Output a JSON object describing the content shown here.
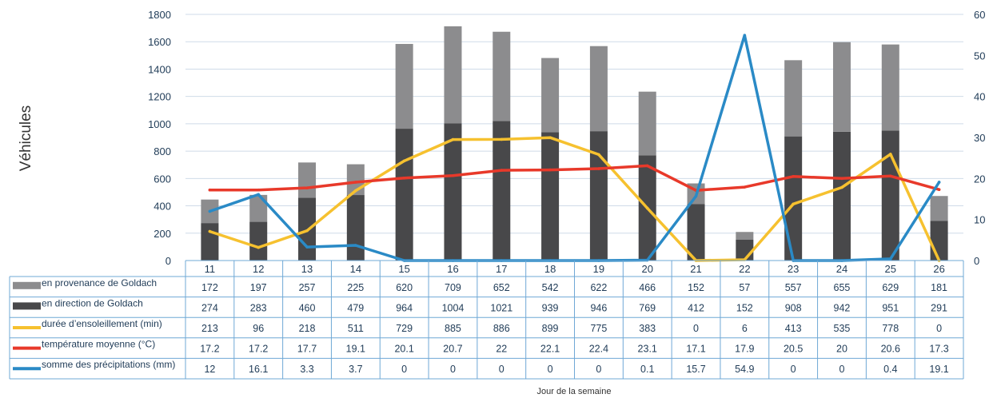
{
  "chart_data": {
    "type": "bar",
    "ylabel": "Véhicules",
    "xlabel": "Jour de la semaine",
    "categories": [
      "11",
      "12",
      "13",
      "14",
      "15",
      "16",
      "17",
      "18",
      "19",
      "20",
      "21",
      "22",
      "23",
      "24",
      "25",
      "26"
    ],
    "ylim": [
      0,
      1800
    ],
    "y2lim": [
      0,
      60
    ],
    "yticks": [
      "0",
      "200",
      "400",
      "600",
      "800",
      "1000",
      "1200",
      "1400",
      "1600",
      "1800"
    ],
    "y2ticks": [
      "0",
      "10",
      "20",
      "30",
      "40",
      "50",
      "60"
    ],
    "grid": true,
    "stacked": true,
    "series": [
      {
        "name": "en provenance de Goldach",
        "kind": "bar",
        "color": "#8c8c8e",
        "values": [
          172,
          197,
          257,
          225,
          620,
          709,
          652,
          542,
          622,
          466,
          152,
          57,
          557,
          655,
          629,
          181
        ],
        "labels": [
          "172",
          "197",
          "257",
          "225",
          "620",
          "709",
          "652",
          "542",
          "622",
          "466",
          "152",
          "57",
          "557",
          "655",
          "629",
          "181"
        ]
      },
      {
        "name": "en direction de Goldach",
        "kind": "bar",
        "color": "#48484a",
        "values": [
          274,
          283,
          460,
          479,
          964,
          1004,
          1021,
          939,
          946,
          769,
          412,
          152,
          908,
          942,
          951,
          291
        ],
        "labels": [
          "274",
          "283",
          "460",
          "479",
          "964",
          "1004",
          "1021",
          "939",
          "946",
          "769",
          "412",
          "152",
          "908",
          "942",
          "951",
          "291"
        ]
      },
      {
        "name": "durée d’ensoleillement (min)",
        "kind": "line",
        "axis": "y1",
        "color": "#f6c12f",
        "values": [
          213,
          96,
          218,
          511,
          729,
          885,
          886,
          899,
          775,
          383,
          0,
          6,
          413,
          535,
          778,
          0
        ],
        "labels": [
          "213",
          "96",
          "218",
          "511",
          "729",
          "885",
          "886",
          "899",
          "775",
          "383",
          "0",
          "6",
          "413",
          "535",
          "778",
          "0"
        ]
      },
      {
        "name": "température moyenne (°C)",
        "kind": "line",
        "axis": "y2",
        "color": "#e8392a",
        "values": [
          17.2,
          17.2,
          17.7,
          19.1,
          20.1,
          20.7,
          22,
          22.1,
          22.4,
          23.1,
          17.1,
          17.9,
          20.5,
          20,
          20.6,
          17.3
        ],
        "labels": [
          "17.2",
          "17.2",
          "17.7",
          "19.1",
          "20.1",
          "20.7",
          "22",
          "22.1",
          "22.4",
          "23.1",
          "17.1",
          "17.9",
          "20.5",
          "20",
          "20.6",
          "17.3"
        ]
      },
      {
        "name": "somme des précipitations (mm)",
        "kind": "line",
        "axis": "y2",
        "color": "#2a8ac6",
        "values": [
          12,
          16.1,
          3.3,
          3.7,
          0,
          0,
          0,
          0,
          0,
          0.1,
          15.7,
          54.9,
          0,
          0,
          0.4,
          19.1
        ],
        "labels": [
          "12",
          "16.1",
          "3.3",
          "3.7",
          "0",
          "0",
          "0",
          "0",
          "0",
          "0.1",
          "15.7",
          "54.9",
          "0",
          "0",
          "0.4",
          "19.1"
        ]
      }
    ]
  }
}
